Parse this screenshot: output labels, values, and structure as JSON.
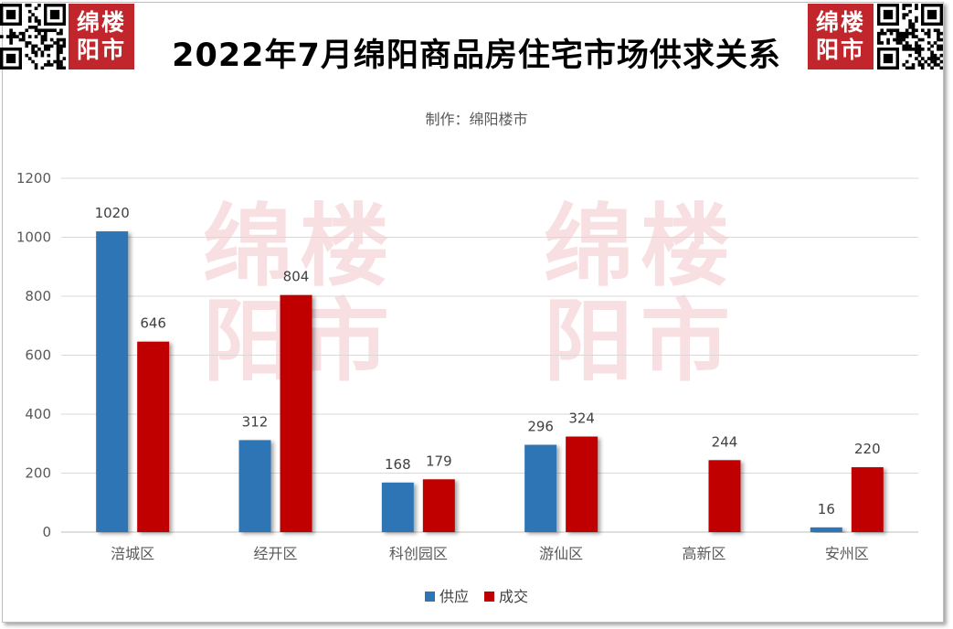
{
  "header": {
    "title": "2022年7月绵阳商品房住宅市场供求关系",
    "logo_left": [
      "绵楼",
      "阳市"
    ],
    "logo_right": [
      "绵楼",
      "阳市"
    ]
  },
  "watermark": {
    "lines": [
      "绵楼",
      "阳市"
    ]
  },
  "chart_data": {
    "type": "bar",
    "subtitle": "制作：绵阳楼市",
    "categories": [
      "涪城区",
      "经开区",
      "科创园区",
      "游仙区",
      "高新区",
      "安州区"
    ],
    "series": [
      {
        "name": "供应",
        "color": "#2e75b6",
        "values": [
          1020,
          312,
          168,
          296,
          null,
          16
        ]
      },
      {
        "name": "成交",
        "color": "#c00000",
        "values": [
          646,
          804,
          179,
          324,
          244,
          220
        ]
      }
    ],
    "ylim": [
      0,
      1200
    ],
    "yticks": [
      0,
      200,
      400,
      600,
      800,
      1000,
      1200
    ],
    "grid": true,
    "legend_position": "bottom"
  },
  "colors": {
    "supply": "#2e75b6",
    "deal": "#c00000",
    "brand": "#c0262b"
  }
}
